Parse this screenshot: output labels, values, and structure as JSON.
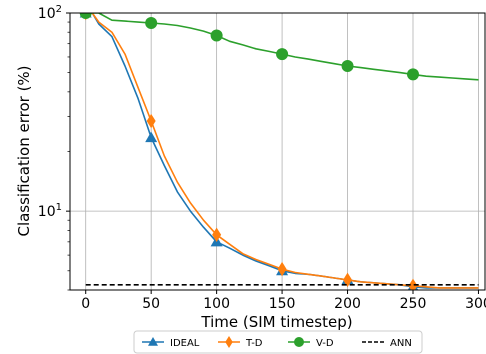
{
  "chart_data": {
    "type": "line",
    "xlabel": "Time (SIM timestep)",
    "ylabel": "Classification error (%)",
    "xlim": [
      -12,
      305
    ],
    "ylim": [
      4,
      100
    ],
    "yscale": "log",
    "grid": true,
    "legend_position": "bottom",
    "x_ticks": [
      0,
      50,
      100,
      150,
      200,
      250,
      300
    ],
    "x_tick_labels": [
      "0",
      "50",
      "100",
      "150",
      "200",
      "250",
      "300"
    ],
    "y_major_ticks": [
      10,
      100
    ],
    "y_tick_labels": [
      "10^1",
      "10^2"
    ],
    "series": [
      {
        "name": "IDEAL",
        "color": "#1f77b4",
        "marker": "triangle",
        "line_style": "solid",
        "x": [
          0,
          5,
          10,
          20,
          30,
          40,
          50,
          60,
          70,
          80,
          90,
          100,
          110,
          120,
          130,
          140,
          150,
          160,
          170,
          180,
          190,
          200,
          210,
          220,
          230,
          240,
          250,
          260,
          270,
          280,
          290,
          300
        ],
        "y": [
          100,
          100,
          88,
          76,
          54,
          37,
          23.5,
          17,
          12.5,
          10,
          8.3,
          7.0,
          6.5,
          6.0,
          5.6,
          5.3,
          5.0,
          4.85,
          4.8,
          4.7,
          4.6,
          4.5,
          4.4,
          4.35,
          4.3,
          4.25,
          4.15,
          4.1,
          4.1,
          4.1,
          4.1,
          4.1
        ],
        "marker_x": [
          0,
          50,
          100,
          150,
          200,
          250
        ]
      },
      {
        "name": "T-D",
        "color": "#ff7f0e",
        "marker": "diamond",
        "line_style": "solid",
        "x": [
          0,
          5,
          10,
          20,
          30,
          40,
          50,
          60,
          70,
          80,
          90,
          100,
          110,
          120,
          130,
          140,
          150,
          160,
          170,
          180,
          190,
          200,
          210,
          220,
          230,
          240,
          250,
          260,
          270,
          280,
          290,
          300
        ],
        "y": [
          100,
          100,
          90,
          80,
          62,
          42,
          28.5,
          19,
          14,
          11,
          9,
          7.6,
          6.8,
          6.1,
          5.7,
          5.4,
          5.1,
          4.9,
          4.8,
          4.7,
          4.6,
          4.5,
          4.4,
          4.35,
          4.3,
          4.25,
          4.2,
          4.15,
          4.1,
          4.1,
          4.1,
          4.1
        ],
        "marker_x": [
          0,
          50,
          100,
          150,
          200,
          250
        ]
      },
      {
        "name": "V-D",
        "color": "#2ca02c",
        "marker": "circle",
        "line_style": "solid",
        "x": [
          0,
          10,
          20,
          30,
          40,
          50,
          60,
          70,
          80,
          90,
          100,
          110,
          120,
          130,
          140,
          150,
          160,
          170,
          180,
          190,
          200,
          210,
          220,
          230,
          240,
          250,
          260,
          270,
          280,
          290,
          300
        ],
        "y": [
          100,
          100,
          92,
          91,
          90,
          89,
          88,
          86.5,
          84,
          81,
          77,
          72,
          69,
          66,
          64,
          62,
          60,
          58.5,
          57,
          55.5,
          54,
          53,
          52,
          51,
          50,
          49,
          48,
          47.5,
          47,
          46.5,
          46
        ],
        "marker_x": [
          0,
          50,
          100,
          150,
          200,
          250
        ]
      },
      {
        "name": "ANN",
        "color": "#000000",
        "marker": "none",
        "line_style": "dashed",
        "x": [
          0,
          300
        ],
        "y": [
          4.25,
          4.25
        ]
      }
    ]
  }
}
